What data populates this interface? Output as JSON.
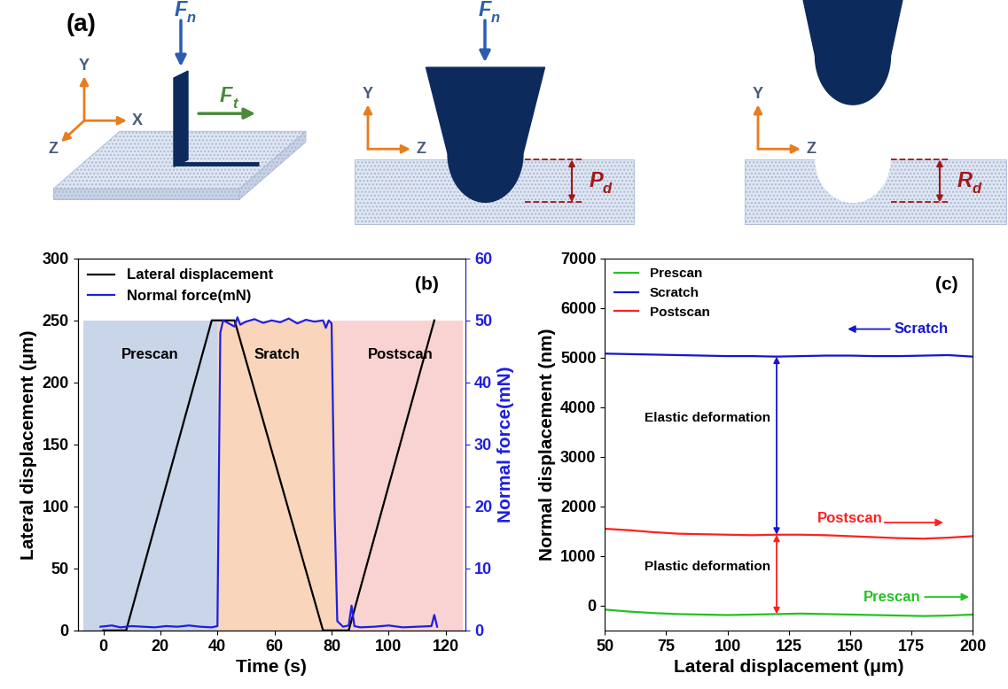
{
  "diagram": {
    "label": "(a)",
    "panels": [
      {
        "axes": [
          "Y",
          "X",
          "Z"
        ],
        "forces": [
          {
            "main": "F",
            "sub": "n"
          },
          {
            "main": "F",
            "sub": "t"
          }
        ]
      },
      {
        "axes": [
          "Y",
          "Z"
        ],
        "forces": [
          {
            "main": "F",
            "sub": "n"
          }
        ],
        "depth": {
          "main": "P",
          "sub": "d"
        }
      },
      {
        "axes": [
          "Y",
          "Z"
        ],
        "depth": {
          "main": "R",
          "sub": "d"
        }
      }
    ]
  },
  "chart_data": [
    {
      "type": "line",
      "label": "(b)",
      "x_label": "Time (s)",
      "y_label": "Lateral displacement (μm)",
      "y2_label": "Normal force(mN)",
      "xlim": [
        -9,
        127
      ],
      "xticks": [
        0,
        20,
        40,
        60,
        80,
        100,
        120
      ],
      "ylim": [
        0,
        300
      ],
      "yticks": [
        0,
        50,
        100,
        150,
        200,
        250,
        300
      ],
      "y2lim": [
        0,
        60
      ],
      "y2ticks": [
        0,
        10,
        20,
        30,
        40,
        50,
        60
      ],
      "legend": "upper left",
      "regions": [
        {
          "label": "Prescan",
          "start": -7,
          "end": 40,
          "top": 250,
          "color": "#c9d5e9"
        },
        {
          "label": "Sratch",
          "start": 40,
          "end": 82,
          "top": 250,
          "color": "#f9d6bb"
        },
        {
          "label": "Postscan",
          "start": 82,
          "end": 126,
          "top": 250,
          "color": "#f8d3d1"
        }
      ],
      "series": [
        {
          "name": "Lateral displacement",
          "color": "#000000",
          "x": [
            0,
            8,
            38,
            46,
            77,
            86,
            116
          ],
          "values": [
            0,
            0,
            250,
            250,
            0,
            0,
            250
          ]
        },
        {
          "name": "Normal force(mN)",
          "color": "#1f1fe0",
          "axis": "y2",
          "x": [
            -1,
            3,
            6,
            10,
            14,
            18,
            22,
            26,
            30,
            34,
            38,
            40,
            41,
            42,
            44,
            46,
            47,
            48,
            50,
            53,
            56,
            59,
            62,
            65,
            68,
            71,
            74,
            77,
            78,
            79,
            80,
            81,
            82,
            84,
            86,
            87,
            88,
            90,
            95,
            100,
            105,
            110,
            115,
            116,
            117
          ],
          "values": [
            0.6,
            0.8,
            0.5,
            0.7,
            0.6,
            0.5,
            0.7,
            0.6,
            0.8,
            0.6,
            0.5,
            0.7,
            48,
            50,
            49.5,
            49,
            50.5,
            49.3,
            49.8,
            50.2,
            49.6,
            50,
            49.7,
            50.3,
            49.5,
            50.1,
            49.8,
            50,
            48.8,
            50,
            49.5,
            20,
            1.5,
            0.6,
            0.8,
            4,
            0.7,
            0.5,
            0.6,
            0.8,
            0.5,
            0.6,
            0.7,
            2.5,
            0.6
          ]
        }
      ]
    },
    {
      "type": "line",
      "label": "(c)",
      "x_label": "Lateral displacement (μm)",
      "y_label": "Normal displacement (nm)",
      "xlim": [
        50,
        200
      ],
      "xticks": [
        50,
        75,
        100,
        125,
        150,
        175,
        200
      ],
      "ylim": [
        -500,
        7000
      ],
      "yticks": [
        0,
        1000,
        2000,
        3000,
        4000,
        5000,
        6000,
        7000
      ],
      "legend": "upper left",
      "x": [
        50,
        60,
        70,
        80,
        90,
        100,
        110,
        120,
        130,
        140,
        150,
        160,
        170,
        180,
        190,
        200
      ],
      "series": [
        {
          "name": "Prescan",
          "color": "#22c322",
          "values": [
            -80,
            -120,
            -150,
            -170,
            -180,
            -190,
            -180,
            -170,
            -160,
            -170,
            -180,
            -190,
            -200,
            -210,
            -200,
            -180
          ]
        },
        {
          "name": "Scratch",
          "color": "#1515d0",
          "values": [
            5080,
            5070,
            5060,
            5050,
            5040,
            5030,
            5030,
            5020,
            5030,
            5040,
            5040,
            5030,
            5030,
            5040,
            5050,
            5020
          ]
        },
        {
          "name": "Postscan",
          "color": "#ff2020",
          "values": [
            1550,
            1520,
            1480,
            1450,
            1440,
            1430,
            1420,
            1430,
            1430,
            1420,
            1400,
            1380,
            1360,
            1350,
            1370,
            1400
          ]
        }
      ],
      "annotations": [
        "Scratch",
        "Postscan",
        "Prescan",
        "Elastic deformation",
        "Plastic deformation"
      ]
    }
  ]
}
